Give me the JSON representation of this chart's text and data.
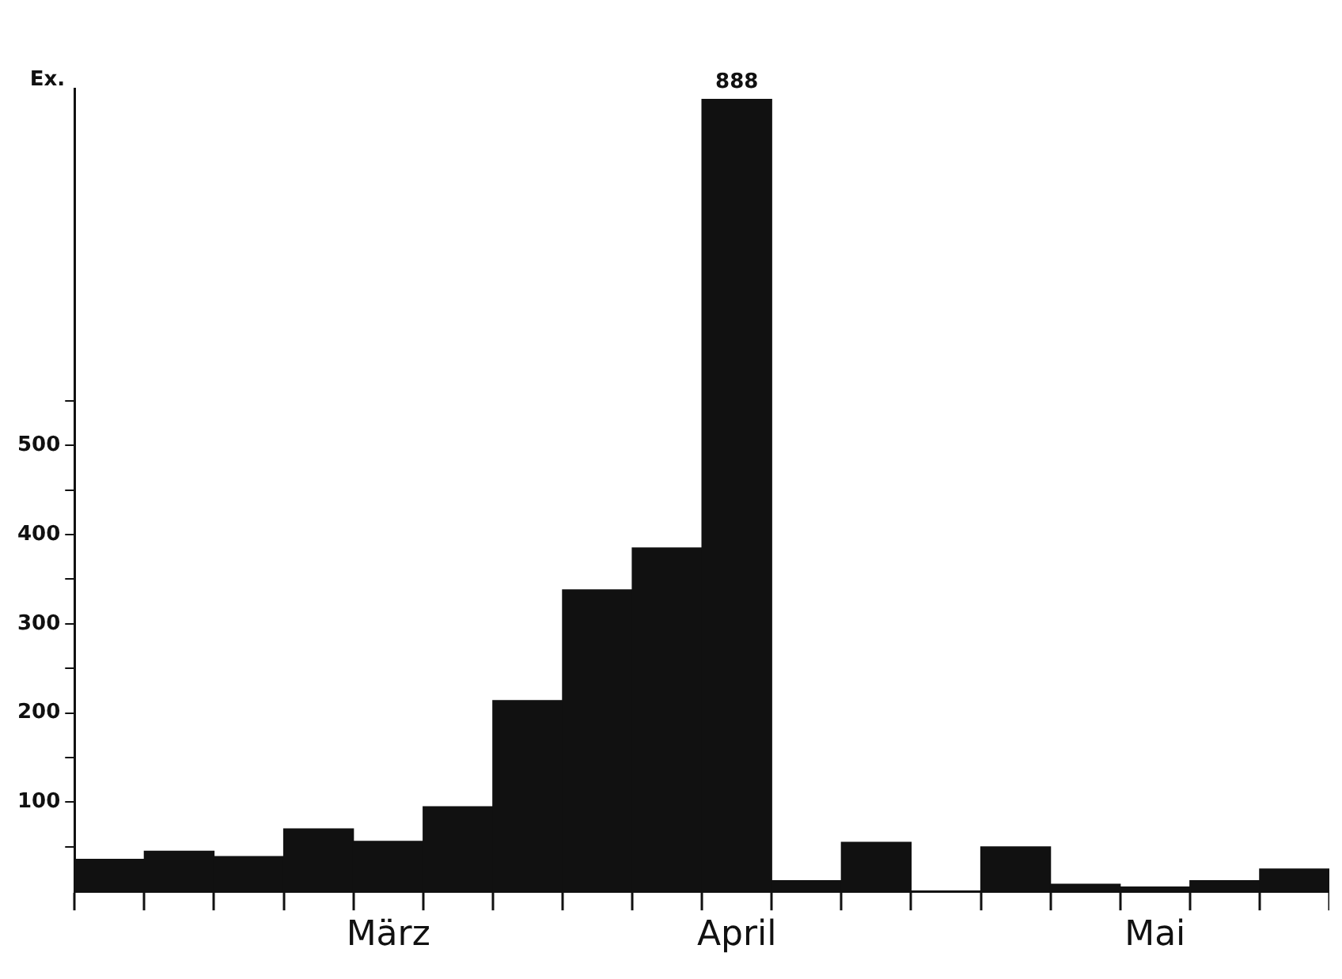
{
  "chart_data": {
    "type": "bar",
    "ylabel": "Ex.",
    "categories": [
      null,
      null,
      null,
      null,
      "März",
      null,
      null,
      null,
      null,
      "April",
      null,
      null,
      null,
      null,
      null,
      "Mai",
      null,
      null
    ],
    "values": [
      36,
      45,
      39,
      70,
      56,
      95,
      214,
      338,
      385,
      888,
      12,
      55,
      0,
      50,
      8,
      5,
      12,
      25
    ],
    "value_labels": [
      null,
      null,
      null,
      null,
      null,
      null,
      null,
      null,
      null,
      "888",
      null,
      null,
      null,
      null,
      null,
      null,
      null,
      null
    ],
    "color": "#111111",
    "ylim": [
      0,
      900
    ],
    "yticks": [
      {
        "value": 50,
        "label": null
      },
      100,
      {
        "value": 150,
        "label": null
      },
      200,
      {
        "value": 250,
        "label": null
      },
      300,
      {
        "value": 350,
        "label": null
      },
      400,
      {
        "value": 450,
        "label": null
      },
      500,
      {
        "value": 550,
        "label": null
      }
    ],
    "grid": false,
    "legend": false
  }
}
